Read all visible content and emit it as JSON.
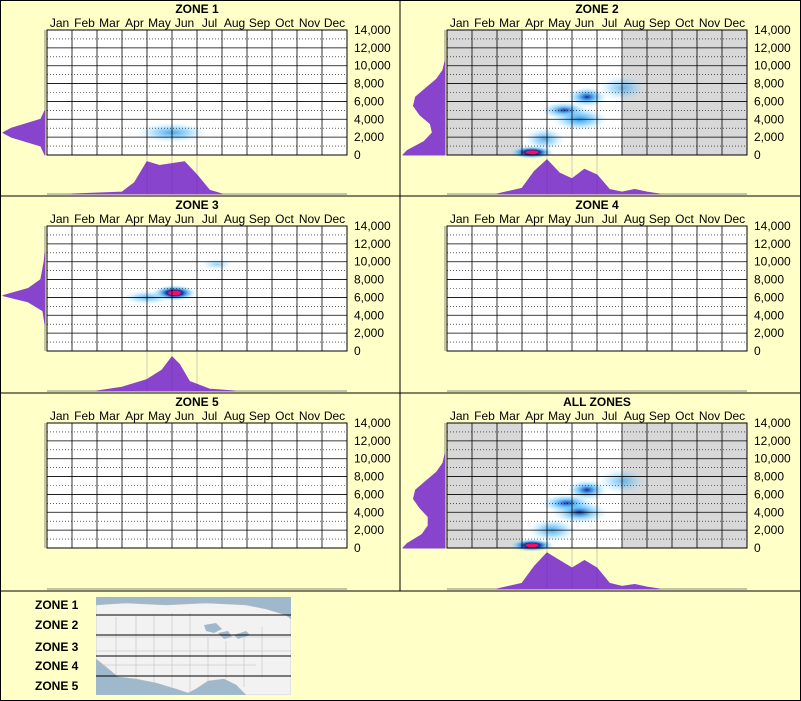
{
  "months": [
    "Jan",
    "Feb",
    "Mar",
    "Apr",
    "May",
    "Jun",
    "Jul",
    "Aug",
    "Sep",
    "Oct",
    "Nov",
    "Dec"
  ],
  "y_ticks": [
    "14,000",
    "12,000",
    "10,000",
    "8,000",
    "6,000",
    "4,000",
    "2,000",
    "0"
  ],
  "colors": {
    "background": "#ffffc8",
    "panel_border": "#000000",
    "grid": "#000000",
    "inactive_month": "#d8d8d8",
    "density_fill": "#8844cc",
    "heat_low": "#a8e8ff",
    "heat_high": "#0030a0",
    "heat_peak": "#ff0060"
  },
  "chart_data": [
    {
      "type": "heatmap",
      "title": "ZONE 1",
      "x_categories": [
        "Jan",
        "Feb",
        "Mar",
        "Apr",
        "May",
        "Jun",
        "Jul",
        "Aug",
        "Sep",
        "Oct",
        "Nov",
        "Dec"
      ],
      "ylim": [
        0,
        14000
      ],
      "y_ticks": [
        0,
        2000,
        4000,
        6000,
        8000,
        10000,
        12000,
        14000
      ],
      "shaded_months": [],
      "blobs": [
        {
          "month": 5.0,
          "elevation": 2500,
          "intensity": 0.45,
          "spread_month": 0.9,
          "spread_elev": 700
        }
      ],
      "elevation_density": [
        [
          0,
          0
        ],
        [
          1000,
          0.1
        ],
        [
          2000,
          0.8
        ],
        [
          2500,
          1.0
        ],
        [
          3000,
          0.8
        ],
        [
          4000,
          0.1
        ],
        [
          5000,
          0
        ]
      ],
      "month_density": [
        [
          1,
          0
        ],
        [
          3,
          0.05
        ],
        [
          3.5,
          0.3
        ],
        [
          4,
          0.85
        ],
        [
          4.5,
          0.75
        ],
        [
          5,
          0.8
        ],
        [
          5.5,
          0.85
        ],
        [
          6,
          0.5
        ],
        [
          6.5,
          0.1
        ],
        [
          7,
          0
        ]
      ]
    },
    {
      "type": "heatmap",
      "title": "ZONE 2",
      "x_categories": [
        "Jan",
        "Feb",
        "Mar",
        "Apr",
        "May",
        "Jun",
        "Jul",
        "Aug",
        "Sep",
        "Oct",
        "Nov",
        "Dec"
      ],
      "ylim": [
        0,
        14000
      ],
      "y_ticks": [
        0,
        2000,
        4000,
        6000,
        8000,
        10000,
        12000,
        14000
      ],
      "shaded_months": [
        1,
        2,
        3,
        8,
        9,
        10,
        11,
        12
      ],
      "blobs": [
        {
          "month": 3.4,
          "elevation": 300,
          "intensity": 1.0,
          "spread_month": 0.55,
          "spread_elev": 450
        },
        {
          "month": 4.7,
          "elevation": 5000,
          "intensity": 0.7,
          "spread_month": 0.6,
          "spread_elev": 600
        },
        {
          "month": 5.6,
          "elevation": 6500,
          "intensity": 0.8,
          "spread_month": 0.5,
          "spread_elev": 700
        },
        {
          "month": 5.3,
          "elevation": 4000,
          "intensity": 0.6,
          "spread_month": 0.7,
          "spread_elev": 800
        },
        {
          "month": 3.9,
          "elevation": 1800,
          "intensity": 0.4,
          "spread_month": 0.5,
          "spread_elev": 800
        },
        {
          "month": 7.0,
          "elevation": 7500,
          "intensity": 0.25,
          "spread_month": 0.6,
          "spread_elev": 900
        }
      ],
      "elevation_density": [
        [
          0,
          1.0
        ],
        [
          500,
          0.9
        ],
        [
          1500,
          0.5
        ],
        [
          2500,
          0.3
        ],
        [
          3500,
          0.35
        ],
        [
          4500,
          0.6
        ],
        [
          5500,
          0.75
        ],
        [
          6500,
          0.7
        ],
        [
          7500,
          0.45
        ],
        [
          8500,
          0.2
        ],
        [
          9500,
          0.05
        ],
        [
          10500,
          0
        ]
      ],
      "month_density": [
        [
          2,
          0
        ],
        [
          3,
          0.15
        ],
        [
          3.5,
          0.6
        ],
        [
          4,
          0.9
        ],
        [
          4.5,
          0.55
        ],
        [
          5,
          0.4
        ],
        [
          5.5,
          0.65
        ],
        [
          6,
          0.5
        ],
        [
          6.5,
          0.12
        ],
        [
          7,
          0.05
        ],
        [
          7.5,
          0.12
        ],
        [
          8,
          0.05
        ],
        [
          8.5,
          0
        ]
      ]
    },
    {
      "type": "heatmap",
      "title": "ZONE 3",
      "x_categories": [
        "Jan",
        "Feb",
        "Mar",
        "Apr",
        "May",
        "Jun",
        "Jul",
        "Aug",
        "Sep",
        "Oct",
        "Nov",
        "Dec"
      ],
      "ylim": [
        0,
        14000
      ],
      "y_ticks": [
        0,
        2000,
        4000,
        6000,
        8000,
        10000,
        12000,
        14000
      ],
      "shaded_months": [],
      "blobs": [
        {
          "month": 5.1,
          "elevation": 6500,
          "intensity": 1.0,
          "spread_month": 0.55,
          "spread_elev": 550
        },
        {
          "month": 4.0,
          "elevation": 6000,
          "intensity": 0.35,
          "spread_month": 0.6,
          "spread_elev": 500
        },
        {
          "month": 6.8,
          "elevation": 9700,
          "intensity": 0.1,
          "spread_month": 0.4,
          "spread_elev": 400
        }
      ],
      "elevation_density": [
        [
          3000,
          0
        ],
        [
          4500,
          0.05
        ],
        [
          5500,
          0.4
        ],
        [
          6200,
          1.0
        ],
        [
          7000,
          0.4
        ],
        [
          8000,
          0.1
        ],
        [
          10000,
          0.02
        ],
        [
          11000,
          0
        ]
      ],
      "month_density": [
        [
          2,
          0
        ],
        [
          3,
          0.1
        ],
        [
          4,
          0.3
        ],
        [
          4.6,
          0.55
        ],
        [
          5,
          0.9
        ],
        [
          5.3,
          0.7
        ],
        [
          5.7,
          0.25
        ],
        [
          6.5,
          0.05
        ],
        [
          7.5,
          0
        ]
      ]
    },
    {
      "type": "heatmap",
      "title": "ZONE 4",
      "x_categories": [
        "Jan",
        "Feb",
        "Mar",
        "Apr",
        "May",
        "Jun",
        "Jul",
        "Aug",
        "Sep",
        "Oct",
        "Nov",
        "Dec"
      ],
      "ylim": [
        0,
        14000
      ],
      "y_ticks": [
        0,
        2000,
        4000,
        6000,
        8000,
        10000,
        12000,
        14000
      ],
      "shaded_months": [],
      "blobs": [],
      "elevation_density": [],
      "month_density": []
    },
    {
      "type": "heatmap",
      "title": "ZONE 5",
      "x_categories": [
        "Jan",
        "Feb",
        "Mar",
        "Apr",
        "May",
        "Jun",
        "Jul",
        "Aug",
        "Sep",
        "Oct",
        "Nov",
        "Dec"
      ],
      "ylim": [
        0,
        14000
      ],
      "y_ticks": [
        0,
        2000,
        4000,
        6000,
        8000,
        10000,
        12000,
        14000
      ],
      "shaded_months": [],
      "blobs": [],
      "elevation_density": [],
      "month_density": []
    },
    {
      "type": "heatmap",
      "title": "ALL ZONES",
      "x_categories": [
        "Jan",
        "Feb",
        "Mar",
        "Apr",
        "May",
        "Jun",
        "Jul",
        "Aug",
        "Sep",
        "Oct",
        "Nov",
        "Dec"
      ],
      "ylim": [
        0,
        14000
      ],
      "y_ticks": [
        0,
        2000,
        4000,
        6000,
        8000,
        10000,
        12000,
        14000
      ],
      "shaded_months": [
        1,
        2,
        3,
        8,
        9,
        10,
        11,
        12
      ],
      "blobs": [
        {
          "month": 3.4,
          "elevation": 300,
          "intensity": 1.0,
          "spread_month": 0.55,
          "spread_elev": 450
        },
        {
          "month": 4.8,
          "elevation": 5000,
          "intensity": 0.75,
          "spread_month": 0.65,
          "spread_elev": 650
        },
        {
          "month": 5.6,
          "elevation": 6500,
          "intensity": 0.8,
          "spread_month": 0.5,
          "spread_elev": 700
        },
        {
          "month": 5.3,
          "elevation": 4000,
          "intensity": 0.65,
          "spread_month": 0.7,
          "spread_elev": 800
        },
        {
          "month": 4.2,
          "elevation": 2000,
          "intensity": 0.45,
          "spread_month": 0.6,
          "spread_elev": 800
        },
        {
          "month": 7.0,
          "elevation": 7500,
          "intensity": 0.25,
          "spread_month": 0.6,
          "spread_elev": 900
        }
      ],
      "elevation_density": [
        [
          0,
          1.0
        ],
        [
          500,
          0.9
        ],
        [
          1500,
          0.55
        ],
        [
          2500,
          0.4
        ],
        [
          3500,
          0.4
        ],
        [
          4500,
          0.6
        ],
        [
          5500,
          0.75
        ],
        [
          6500,
          0.7
        ],
        [
          7500,
          0.45
        ],
        [
          8500,
          0.2
        ],
        [
          9500,
          0.05
        ],
        [
          10500,
          0
        ]
      ],
      "month_density": [
        [
          2,
          0
        ],
        [
          3,
          0.15
        ],
        [
          3.5,
          0.6
        ],
        [
          4,
          0.95
        ],
        [
          4.5,
          0.75
        ],
        [
          5,
          0.55
        ],
        [
          5.5,
          0.75
        ],
        [
          6,
          0.55
        ],
        [
          6.5,
          0.15
        ],
        [
          7,
          0.07
        ],
        [
          7.5,
          0.12
        ],
        [
          8,
          0.05
        ],
        [
          8.5,
          0
        ]
      ]
    }
  ],
  "legend": {
    "zones": [
      "ZONE 1",
      "ZONE 2",
      "ZONE 3",
      "ZONE 4",
      "ZONE 5"
    ],
    "map_image": "us-zone-map"
  }
}
